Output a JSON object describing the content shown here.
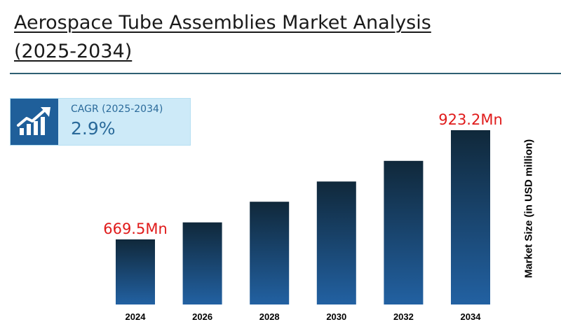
{
  "header": {
    "title": "Aerospace Tube Assemblies Market Analysis (2025-2034)"
  },
  "cagr": {
    "label": "CAGR (2025-2034)",
    "value": "2.9%",
    "icon": "growth-chart-icon"
  },
  "colors": {
    "bar_top": "#10283a",
    "bar_bottom": "#2261a2",
    "highlight_label": "#e01b1b",
    "rule": "#2e5f73",
    "cagr_box": "#cdeaf8",
    "cagr_icon_bg": "#1f5f9a"
  },
  "chart_data": {
    "type": "bar",
    "categories": [
      "2024",
      "2026",
      "2028",
      "2030",
      "2032",
      "2034"
    ],
    "values": [
      669.5,
      709,
      757,
      804,
      852,
      923.2
    ],
    "data_labels": [
      {
        "category": "2024",
        "text": "669.5Mn"
      },
      {
        "category": "2034",
        "text": "923.2Mn"
      }
    ],
    "title": "Aerospace Tube Assemblies Market Analysis (2025-2034)",
    "xlabel": "",
    "ylabel": "Market Size (in USD million)",
    "ylim": [
      0,
      1000
    ],
    "grid": false,
    "legend": "none"
  }
}
